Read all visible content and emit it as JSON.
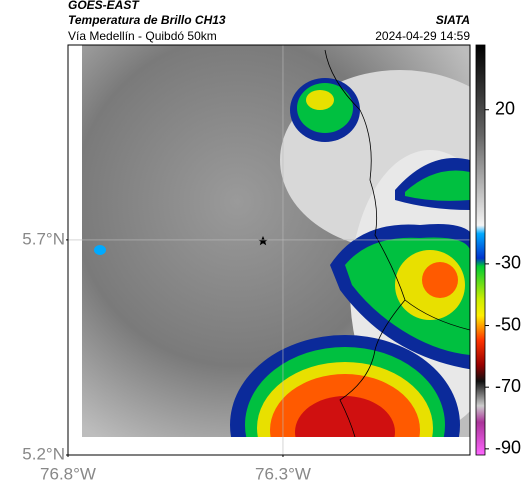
{
  "header": {
    "source": "GOES-EAST",
    "title": "Temperatura de Brillo CH13",
    "subtitle": "Vía Medellín - Quibdó 50km",
    "agency": "SIATA",
    "timestamp": "2024-04-29 14:59"
  },
  "map": {
    "latlim": [
      5.2,
      6.153
    ],
    "lonlim": [
      -76.8,
      -75.865
    ],
    "latticks": [
      {
        "value": 5.2,
        "label": "5.2°N"
      },
      {
        "value": 5.7,
        "label": "5.7°N"
      }
    ],
    "lonticks": [
      {
        "value": -76.8,
        "label": "76.8°W"
      },
      {
        "value": -76.3,
        "label": "76.3°W"
      }
    ],
    "grid": true
  },
  "colorbar": {
    "range": [
      -92,
      41
    ],
    "ticks": [
      20,
      -30,
      -50,
      -70,
      -90
    ]
  }
}
